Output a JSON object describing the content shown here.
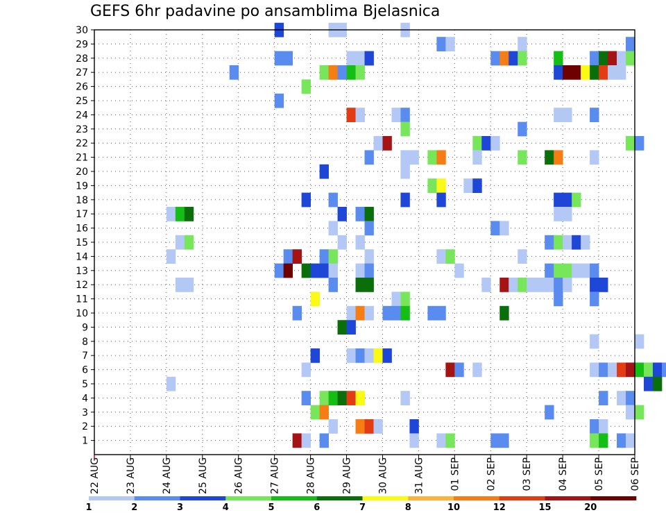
{
  "chart_data": {
    "type": "heatmap",
    "title": "GEFS 6hr padavine po ansamblima Bjelasnica",
    "y_ticks": [
      "1",
      "2",
      "3",
      "4",
      "5",
      "6",
      "7",
      "8",
      "9",
      "10",
      "11",
      "12",
      "13",
      "14",
      "15",
      "16",
      "17",
      "18",
      "19",
      "20",
      "21",
      "22",
      "23",
      "24",
      "25",
      "26",
      "27",
      "28",
      "29",
      "30"
    ],
    "x_ticks": [
      "22 AUG",
      "23 AUG",
      "24 AUG",
      "25 AUG",
      "26 AUG",
      "27 AUG",
      "28 AUG",
      "29 AUG",
      "30 AUG",
      "31 AUG",
      "01 SEP",
      "02 SEP",
      "03 SEP",
      "04 SEP",
      "05 SEP",
      "06 SEP"
    ],
    "x_range_days": [
      0,
      15
    ],
    "y_range": [
      0,
      30
    ],
    "grid": true,
    "legend_position": "bottom",
    "legend": {
      "labels": [
        "1",
        "2",
        "3",
        "4",
        "5",
        "6",
        "7",
        "8",
        "10",
        "12",
        "15",
        "20"
      ],
      "colors": [
        "#b4c8f5",
        "#5a8cf0",
        "#1e46d7",
        "#78e65a",
        "#14be14",
        "#0a6e0a",
        "#fafa14",
        "#fab43c",
        "#f57d14",
        "#e13c14",
        "#a51414",
        "#6e0000"
      ]
    },
    "cells": [
      {
        "day": 5.0,
        "member": 30,
        "cls": 3
      },
      {
        "day": 6.5,
        "member": 30,
        "cls": 1
      },
      {
        "day": 6.75,
        "member": 30,
        "cls": 1
      },
      {
        "day": 8.5,
        "member": 30,
        "cls": 1
      },
      {
        "day": 9.5,
        "member": 29,
        "cls": 2
      },
      {
        "day": 9.75,
        "member": 29,
        "cls": 1
      },
      {
        "day": 11.75,
        "member": 29,
        "cls": 1
      },
      {
        "day": 14.75,
        "member": 29,
        "cls": 2
      },
      {
        "day": 5.0,
        "member": 28,
        "cls": 2
      },
      {
        "day": 5.25,
        "member": 28,
        "cls": 2
      },
      {
        "day": 7.0,
        "member": 28,
        "cls": 1
      },
      {
        "day": 7.25,
        "member": 28,
        "cls": 1
      },
      {
        "day": 7.5,
        "member": 28,
        "cls": 3
      },
      {
        "day": 11.0,
        "member": 28,
        "cls": 2
      },
      {
        "day": 11.25,
        "member": 28,
        "cls": 9
      },
      {
        "day": 11.5,
        "member": 28,
        "cls": 3
      },
      {
        "day": 11.75,
        "member": 28,
        "cls": 4
      },
      {
        "day": 12.75,
        "member": 28,
        "cls": 5
      },
      {
        "day": 13.75,
        "member": 28,
        "cls": 2
      },
      {
        "day": 14.0,
        "member": 28,
        "cls": 6
      },
      {
        "day": 14.25,
        "member": 28,
        "cls": 11
      },
      {
        "day": 14.5,
        "member": 28,
        "cls": 1
      },
      {
        "day": 14.75,
        "member": 28,
        "cls": 4
      },
      {
        "day": 3.75,
        "member": 27,
        "cls": 2
      },
      {
        "day": 6.25,
        "member": 27,
        "cls": 4
      },
      {
        "day": 6.5,
        "member": 27,
        "cls": 9
      },
      {
        "day": 6.75,
        "member": 27,
        "cls": 2
      },
      {
        "day": 7.0,
        "member": 27,
        "cls": 5
      },
      {
        "day": 7.25,
        "member": 27,
        "cls": 4
      },
      {
        "day": 12.75,
        "member": 27,
        "cls": 3
      },
      {
        "day": 13.0,
        "member": 27,
        "cls": 12
      },
      {
        "day": 13.25,
        "member": 27,
        "cls": 12
      },
      {
        "day": 13.5,
        "member": 27,
        "cls": 7
      },
      {
        "day": 13.75,
        "member": 27,
        "cls": 6
      },
      {
        "day": 14.0,
        "member": 27,
        "cls": 10
      },
      {
        "day": 14.25,
        "member": 27,
        "cls": 1
      },
      {
        "day": 14.5,
        "member": 27,
        "cls": 1
      },
      {
        "day": 5.75,
        "member": 26,
        "cls": 4
      },
      {
        "day": 5.0,
        "member": 25,
        "cls": 2
      },
      {
        "day": 7.0,
        "member": 24,
        "cls": 10
      },
      {
        "day": 7.25,
        "member": 24,
        "cls": 1
      },
      {
        "day": 8.25,
        "member": 24,
        "cls": 1
      },
      {
        "day": 8.5,
        "member": 24,
        "cls": 2
      },
      {
        "day": 12.75,
        "member": 24,
        "cls": 1
      },
      {
        "day": 13.0,
        "member": 24,
        "cls": 1
      },
      {
        "day": 13.75,
        "member": 24,
        "cls": 2
      },
      {
        "day": 8.5,
        "member": 23,
        "cls": 4
      },
      {
        "day": 11.75,
        "member": 23,
        "cls": 2
      },
      {
        "day": 7.75,
        "member": 22,
        "cls": 1
      },
      {
        "day": 8.0,
        "member": 22,
        "cls": 11
      },
      {
        "day": 10.5,
        "member": 22,
        "cls": 4
      },
      {
        "day": 10.75,
        "member": 22,
        "cls": 3
      },
      {
        "day": 11.0,
        "member": 22,
        "cls": 1
      },
      {
        "day": 14.75,
        "member": 22,
        "cls": 4
      },
      {
        "day": 15.0,
        "member": 22,
        "cls": 2
      },
      {
        "day": 7.5,
        "member": 21,
        "cls": 2
      },
      {
        "day": 8.5,
        "member": 21,
        "cls": 1
      },
      {
        "day": 8.75,
        "member": 21,
        "cls": 1
      },
      {
        "day": 9.25,
        "member": 21,
        "cls": 4
      },
      {
        "day": 9.5,
        "member": 21,
        "cls": 9
      },
      {
        "day": 10.5,
        "member": 21,
        "cls": 1
      },
      {
        "day": 11.75,
        "member": 21,
        "cls": 4
      },
      {
        "day": 12.5,
        "member": 21,
        "cls": 6
      },
      {
        "day": 12.75,
        "member": 21,
        "cls": 9
      },
      {
        "day": 13.75,
        "member": 21,
        "cls": 1
      },
      {
        "day": 6.25,
        "member": 20,
        "cls": 3
      },
      {
        "day": 8.5,
        "member": 20,
        "cls": 1
      },
      {
        "day": 9.25,
        "member": 19,
        "cls": 4
      },
      {
        "day": 9.5,
        "member": 19,
        "cls": 7
      },
      {
        "day": 10.25,
        "member": 19,
        "cls": 1
      },
      {
        "day": 10.5,
        "member": 19,
        "cls": 3
      },
      {
        "day": 5.75,
        "member": 18,
        "cls": 3
      },
      {
        "day": 6.5,
        "member": 18,
        "cls": 2
      },
      {
        "day": 8.5,
        "member": 18,
        "cls": 3
      },
      {
        "day": 9.5,
        "member": 18,
        "cls": 3
      },
      {
        "day": 12.75,
        "member": 18,
        "cls": 3
      },
      {
        "day": 13.0,
        "member": 18,
        "cls": 3
      },
      {
        "day": 13.25,
        "member": 18,
        "cls": 4
      },
      {
        "day": 2.0,
        "member": 17,
        "cls": 1
      },
      {
        "day": 2.25,
        "member": 17,
        "cls": 5
      },
      {
        "day": 2.5,
        "member": 17,
        "cls": 6
      },
      {
        "day": 6.75,
        "member": 17,
        "cls": 3
      },
      {
        "day": 7.25,
        "member": 17,
        "cls": 2
      },
      {
        "day": 7.5,
        "member": 17,
        "cls": 6
      },
      {
        "day": 12.75,
        "member": 17,
        "cls": 1
      },
      {
        "day": 13.0,
        "member": 17,
        "cls": 1
      },
      {
        "day": 6.5,
        "member": 16,
        "cls": 1
      },
      {
        "day": 7.5,
        "member": 16,
        "cls": 2
      },
      {
        "day": 11.0,
        "member": 16,
        "cls": 2
      },
      {
        "day": 11.25,
        "member": 16,
        "cls": 1
      },
      {
        "day": 2.25,
        "member": 15,
        "cls": 1
      },
      {
        "day": 2.5,
        "member": 15,
        "cls": 4
      },
      {
        "day": 6.75,
        "member": 15,
        "cls": 1
      },
      {
        "day": 7.25,
        "member": 15,
        "cls": 1
      },
      {
        "day": 12.5,
        "member": 15,
        "cls": 2
      },
      {
        "day": 12.75,
        "member": 15,
        "cls": 4
      },
      {
        "day": 13.0,
        "member": 15,
        "cls": 1
      },
      {
        "day": 13.25,
        "member": 15,
        "cls": 3
      },
      {
        "day": 13.5,
        "member": 15,
        "cls": 1
      },
      {
        "day": 2.0,
        "member": 14,
        "cls": 1
      },
      {
        "day": 5.25,
        "member": 14,
        "cls": 2
      },
      {
        "day": 5.5,
        "member": 14,
        "cls": 11
      },
      {
        "day": 6.25,
        "member": 14,
        "cls": 2
      },
      {
        "day": 6.5,
        "member": 14,
        "cls": 4
      },
      {
        "day": 7.5,
        "member": 14,
        "cls": 1
      },
      {
        "day": 9.5,
        "member": 14,
        "cls": 1
      },
      {
        "day": 9.75,
        "member": 14,
        "cls": 4
      },
      {
        "day": 11.75,
        "member": 14,
        "cls": 1
      },
      {
        "day": 5.0,
        "member": 13,
        "cls": 2
      },
      {
        "day": 5.25,
        "member": 13,
        "cls": 12
      },
      {
        "day": 5.75,
        "member": 13,
        "cls": 6
      },
      {
        "day": 6.0,
        "member": 13,
        "cls": 3
      },
      {
        "day": 6.25,
        "member": 13,
        "cls": 3
      },
      {
        "day": 6.5,
        "member": 13,
        "cls": 1
      },
      {
        "day": 7.25,
        "member": 13,
        "cls": 1
      },
      {
        "day": 7.5,
        "member": 13,
        "cls": 2
      },
      {
        "day": 10.0,
        "member": 13,
        "cls": 1
      },
      {
        "day": 12.5,
        "member": 13,
        "cls": 2
      },
      {
        "day": 12.75,
        "member": 13,
        "cls": 4
      },
      {
        "day": 13.0,
        "member": 13,
        "cls": 4
      },
      {
        "day": 13.25,
        "member": 13,
        "cls": 1
      },
      {
        "day": 13.5,
        "member": 13,
        "cls": 1
      },
      {
        "day": 13.75,
        "member": 13,
        "cls": 2
      },
      {
        "day": 2.25,
        "member": 12,
        "cls": 1
      },
      {
        "day": 2.5,
        "member": 12,
        "cls": 1
      },
      {
        "day": 6.5,
        "member": 12,
        "cls": 2
      },
      {
        "day": 7.25,
        "member": 12,
        "cls": 6
      },
      {
        "day": 7.5,
        "member": 12,
        "cls": 6
      },
      {
        "day": 10.75,
        "member": 12,
        "cls": 1
      },
      {
        "day": 11.25,
        "member": 12,
        "cls": 11
      },
      {
        "day": 11.5,
        "member": 12,
        "cls": 1
      },
      {
        "day": 11.75,
        "member": 12,
        "cls": 4
      },
      {
        "day": 12.0,
        "member": 12,
        "cls": 1
      },
      {
        "day": 12.25,
        "member": 12,
        "cls": 1
      },
      {
        "day": 12.5,
        "member": 12,
        "cls": 1
      },
      {
        "day": 12.75,
        "member": 12,
        "cls": 2
      },
      {
        "day": 13.0,
        "member": 12,
        "cls": 1
      },
      {
        "day": 13.75,
        "member": 12,
        "cls": 3
      },
      {
        "day": 14.0,
        "member": 12,
        "cls": 3
      },
      {
        "day": 6.0,
        "member": 11,
        "cls": 7
      },
      {
        "day": 8.25,
        "member": 11,
        "cls": 1
      },
      {
        "day": 8.5,
        "member": 11,
        "cls": 4
      },
      {
        "day": 12.75,
        "member": 11,
        "cls": 2
      },
      {
        "day": 13.75,
        "member": 11,
        "cls": 2
      },
      {
        "day": 5.5,
        "member": 10,
        "cls": 2
      },
      {
        "day": 7.0,
        "member": 10,
        "cls": 1
      },
      {
        "day": 7.25,
        "member": 10,
        "cls": 9
      },
      {
        "day": 7.5,
        "member": 10,
        "cls": 1
      },
      {
        "day": 8.0,
        "member": 10,
        "cls": 2
      },
      {
        "day": 8.25,
        "member": 10,
        "cls": 2
      },
      {
        "day": 8.5,
        "member": 10,
        "cls": 5
      },
      {
        "day": 9.25,
        "member": 10,
        "cls": 2
      },
      {
        "day": 9.5,
        "member": 10,
        "cls": 2
      },
      {
        "day": 11.25,
        "member": 10,
        "cls": 6
      },
      {
        "day": 6.75,
        "member": 9,
        "cls": 6
      },
      {
        "day": 7.0,
        "member": 9,
        "cls": 3
      },
      {
        "day": 13.75,
        "member": 8,
        "cls": 1
      },
      {
        "day": 15.0,
        "member": 8,
        "cls": 1
      },
      {
        "day": 6.0,
        "member": 7,
        "cls": 3
      },
      {
        "day": 7.0,
        "member": 7,
        "cls": 1
      },
      {
        "day": 7.25,
        "member": 7,
        "cls": 2
      },
      {
        "day": 7.5,
        "member": 7,
        "cls": 1
      },
      {
        "day": 7.75,
        "member": 7,
        "cls": 7
      },
      {
        "day": 8.0,
        "member": 7,
        "cls": 3
      },
      {
        "day": 5.75,
        "member": 6,
        "cls": 1
      },
      {
        "day": 9.75,
        "member": 6,
        "cls": 11
      },
      {
        "day": 10.0,
        "member": 6,
        "cls": 2
      },
      {
        "day": 10.5,
        "member": 6,
        "cls": 1
      },
      {
        "day": 13.75,
        "member": 6,
        "cls": 1
      },
      {
        "day": 14.0,
        "member": 6,
        "cls": 2
      },
      {
        "day": 14.25,
        "member": 6,
        "cls": 1
      },
      {
        "day": 14.5,
        "member": 6,
        "cls": 10
      },
      {
        "day": 14.75,
        "member": 6,
        "cls": 11
      },
      {
        "day": 15.0,
        "member": 6,
        "cls": 5
      },
      {
        "day": 15.25,
        "member": 6,
        "cls": 4
      },
      {
        "day": 15.5,
        "member": 6,
        "cls": 3
      },
      {
        "day": 15.75,
        "member": 6,
        "cls": 2
      },
      {
        "day": 2.0,
        "member": 5,
        "cls": 1
      },
      {
        "day": 15.25,
        "member": 5,
        "cls": 3
      },
      {
        "day": 15.5,
        "member": 5,
        "cls": 6
      },
      {
        "day": 5.75,
        "member": 4,
        "cls": 2
      },
      {
        "day": 6.25,
        "member": 4,
        "cls": 4
      },
      {
        "day": 6.5,
        "member": 4,
        "cls": 5
      },
      {
        "day": 6.75,
        "member": 4,
        "cls": 6
      },
      {
        "day": 7.0,
        "member": 4,
        "cls": 10
      },
      {
        "day": 7.25,
        "member": 4,
        "cls": 7
      },
      {
        "day": 8.5,
        "member": 4,
        "cls": 1
      },
      {
        "day": 14.0,
        "member": 4,
        "cls": 2
      },
      {
        "day": 14.5,
        "member": 4,
        "cls": 1
      },
      {
        "day": 14.75,
        "member": 4,
        "cls": 2
      },
      {
        "day": 6.0,
        "member": 3,
        "cls": 4
      },
      {
        "day": 6.25,
        "member": 3,
        "cls": 9
      },
      {
        "day": 12.5,
        "member": 3,
        "cls": 2
      },
      {
        "day": 14.75,
        "member": 3,
        "cls": 1
      },
      {
        "day": 15.0,
        "member": 3,
        "cls": 4
      },
      {
        "day": 6.5,
        "member": 2,
        "cls": 1
      },
      {
        "day": 7.25,
        "member": 2,
        "cls": 9
      },
      {
        "day": 7.5,
        "member": 2,
        "cls": 10
      },
      {
        "day": 7.75,
        "member": 2,
        "cls": 1
      },
      {
        "day": 8.75,
        "member": 2,
        "cls": 3
      },
      {
        "day": 13.75,
        "member": 2,
        "cls": 2
      },
      {
        "day": 14.0,
        "member": 2,
        "cls": 1
      },
      {
        "day": 5.5,
        "member": 1,
        "cls": 11
      },
      {
        "day": 5.75,
        "member": 1,
        "cls": 1
      },
      {
        "day": 6.25,
        "member": 1,
        "cls": 2
      },
      {
        "day": 8.75,
        "member": 1,
        "cls": 1
      },
      {
        "day": 9.5,
        "member": 1,
        "cls": 1
      },
      {
        "day": 9.75,
        "member": 1,
        "cls": 4
      },
      {
        "day": 11.0,
        "member": 1,
        "cls": 2
      },
      {
        "day": 11.25,
        "member": 1,
        "cls": 2
      },
      {
        "day": 13.75,
        "member": 1,
        "cls": 4
      },
      {
        "day": 14.0,
        "member": 1,
        "cls": 5
      },
      {
        "day": 14.5,
        "member": 1,
        "cls": 2
      },
      {
        "day": 14.75,
        "member": 1,
        "cls": 1
      }
    ]
  }
}
